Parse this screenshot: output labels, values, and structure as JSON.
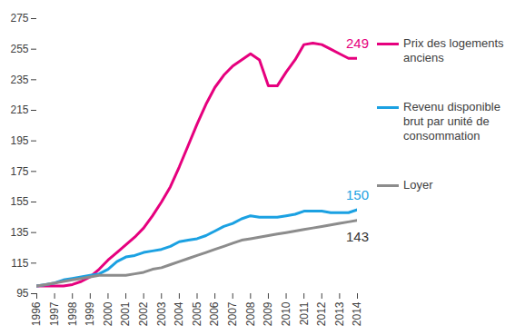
{
  "chart_data": {
    "type": "line",
    "x": [
      1996,
      1996.5,
      1997,
      1997.5,
      1998,
      1998.5,
      1999,
      1999.5,
      2000,
      2000.5,
      2001,
      2001.5,
      2002,
      2002.5,
      2003,
      2003.5,
      2004,
      2004.5,
      2005,
      2005.5,
      2006,
      2006.5,
      2007,
      2007.5,
      2008,
      2008.5,
      2009,
      2009.5,
      2010,
      2010.5,
      2011,
      2011.5,
      2012,
      2012.5,
      2013,
      2013.5,
      2014
    ],
    "series": [
      {
        "name": "Prix des logements anciens",
        "color": "#e6007e",
        "values": [
          100,
          100,
          100,
          100,
          101,
          103,
          106,
          111,
          117,
          122,
          127,
          132,
          138,
          146,
          155,
          165,
          178,
          192,
          206,
          219,
          230,
          238,
          244,
          248,
          252,
          248,
          231,
          231,
          240,
          248,
          258,
          259,
          258,
          255,
          252,
          249,
          249
        ]
      },
      {
        "name": "Revenu disponible brut par unité de consommation",
        "color": "#1ba1e2",
        "values": [
          100,
          101,
          102,
          104,
          105,
          106,
          107,
          108,
          111,
          116,
          119,
          120,
          122,
          123,
          124,
          126,
          129,
          130,
          131,
          133,
          136,
          139,
          141,
          144,
          146,
          145,
          145,
          145,
          146,
          147,
          149,
          149,
          149,
          148,
          148,
          148,
          150
        ]
      },
      {
        "name": "Loyer",
        "color": "#8c8c8c",
        "values": [
          100,
          101,
          102,
          103,
          104,
          105,
          106,
          107,
          107,
          107,
          107,
          108,
          109,
          111,
          112,
          114,
          116,
          118,
          120,
          122,
          124,
          126,
          128,
          130,
          131,
          132,
          133,
          134,
          135,
          136,
          137,
          138,
          139,
          140,
          141,
          142,
          143
        ]
      }
    ],
    "annotations": [
      {
        "series": "Prix des logements anciens",
        "text": "249"
      },
      {
        "series": "Revenu disponible brut par unité de consommation",
        "text": "150"
      },
      {
        "series": "Loyer",
        "text": "143"
      }
    ],
    "xlim": [
      1996,
      2014
    ],
    "xticks": [
      1996,
      1997,
      1998,
      1999,
      2000,
      2001,
      2002,
      2003,
      2004,
      2005,
      2006,
      2007,
      2008,
      2009,
      2010,
      2011,
      2012,
      2013,
      2014
    ],
    "ylim": [
      95,
      275
    ],
    "yticks": [
      95,
      115,
      135,
      155,
      175,
      195,
      215,
      235,
      255,
      275
    ],
    "grid": false,
    "legend": "right"
  }
}
